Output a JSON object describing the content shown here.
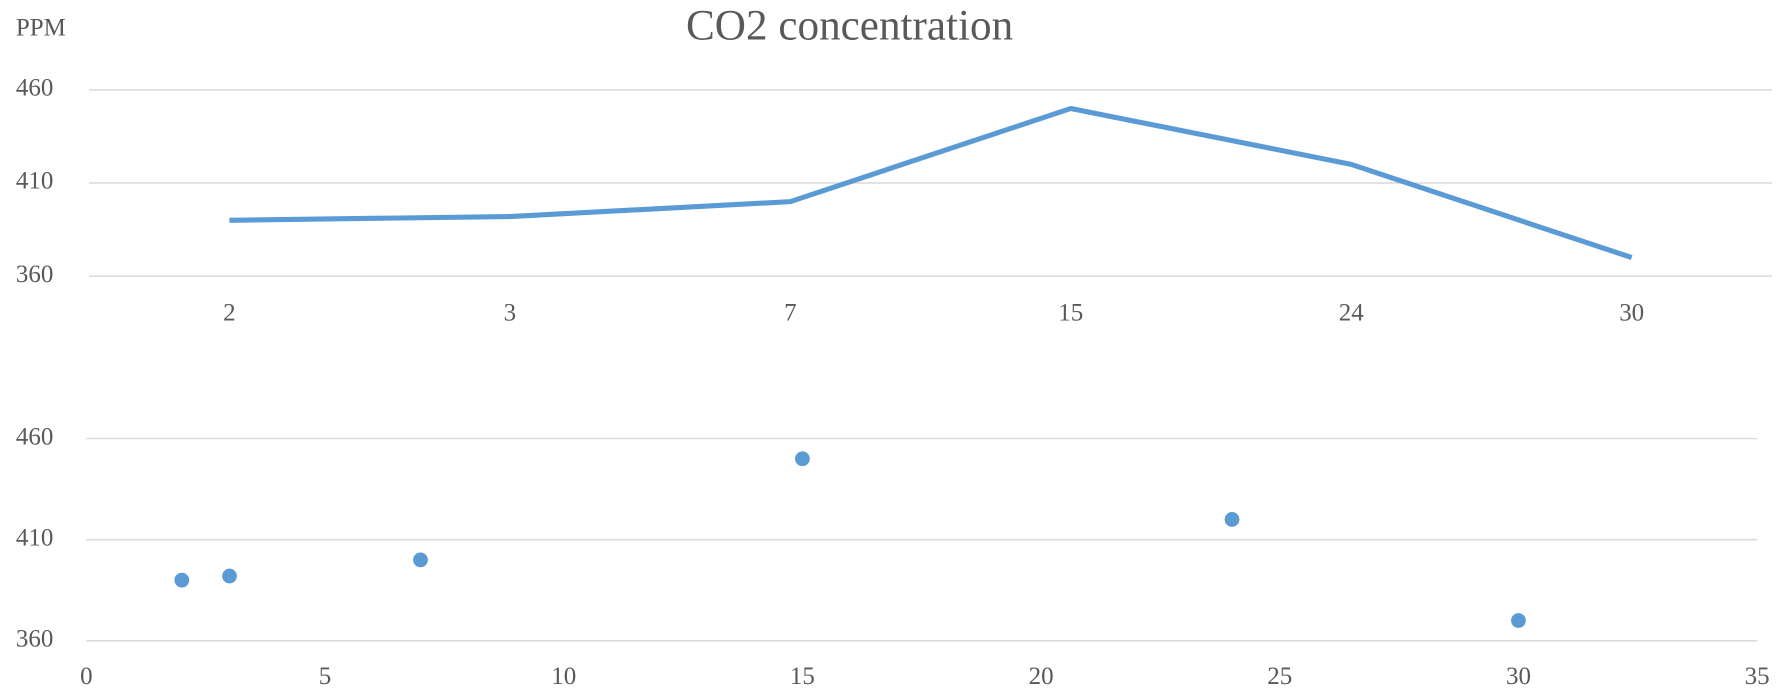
{
  "chart_data": [
    {
      "type": "line",
      "title": "CO2 concentration",
      "ylabel": "PPM",
      "categories": [
        "2",
        "3",
        "7",
        "15",
        "24",
        "30"
      ],
      "series": [
        {
          "color": "#5b9bd5",
          "values": [
            390,
            392,
            400,
            450,
            420,
            370
          ]
        }
      ],
      "ylim": [
        360,
        460
      ],
      "yticks": [
        360,
        410,
        460
      ],
      "grid": true
    },
    {
      "type": "scatter",
      "x": [
        2,
        3,
        7,
        15,
        24,
        30
      ],
      "series": [
        {
          "color": "#5b9bd5",
          "values": [
            390,
            392,
            400,
            450,
            420,
            370
          ]
        }
      ],
      "xlim": [
        0,
        35
      ],
      "xticks": [
        0,
        5,
        10,
        15,
        20,
        25,
        30,
        35
      ],
      "ylim": [
        360,
        460
      ],
      "yticks": [
        360,
        410,
        460
      ],
      "grid": true
    }
  ]
}
